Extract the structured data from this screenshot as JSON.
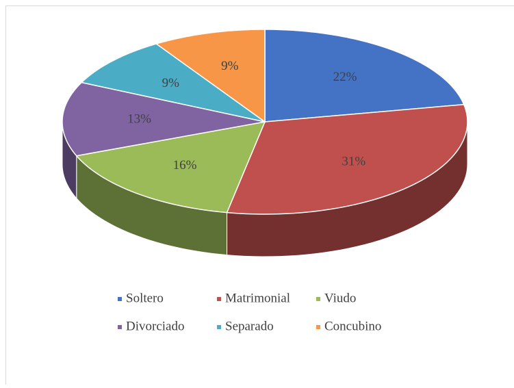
{
  "chart_data": {
    "type": "pie",
    "categories": [
      "Soltero",
      "Matrimonial",
      "Viudo",
      "Divorciado",
      "Separado",
      "Concubino"
    ],
    "values": [
      22,
      31,
      16,
      13,
      9,
      9
    ],
    "value_labels": [
      "22%",
      "31%",
      "16%",
      "13%",
      "9%",
      "9%"
    ],
    "colors": [
      "#4472c4",
      "#c0504d",
      "#9bbb59",
      "#8064a2",
      "#4bacc6",
      "#f79646"
    ],
    "legend": "bottom"
  }
}
